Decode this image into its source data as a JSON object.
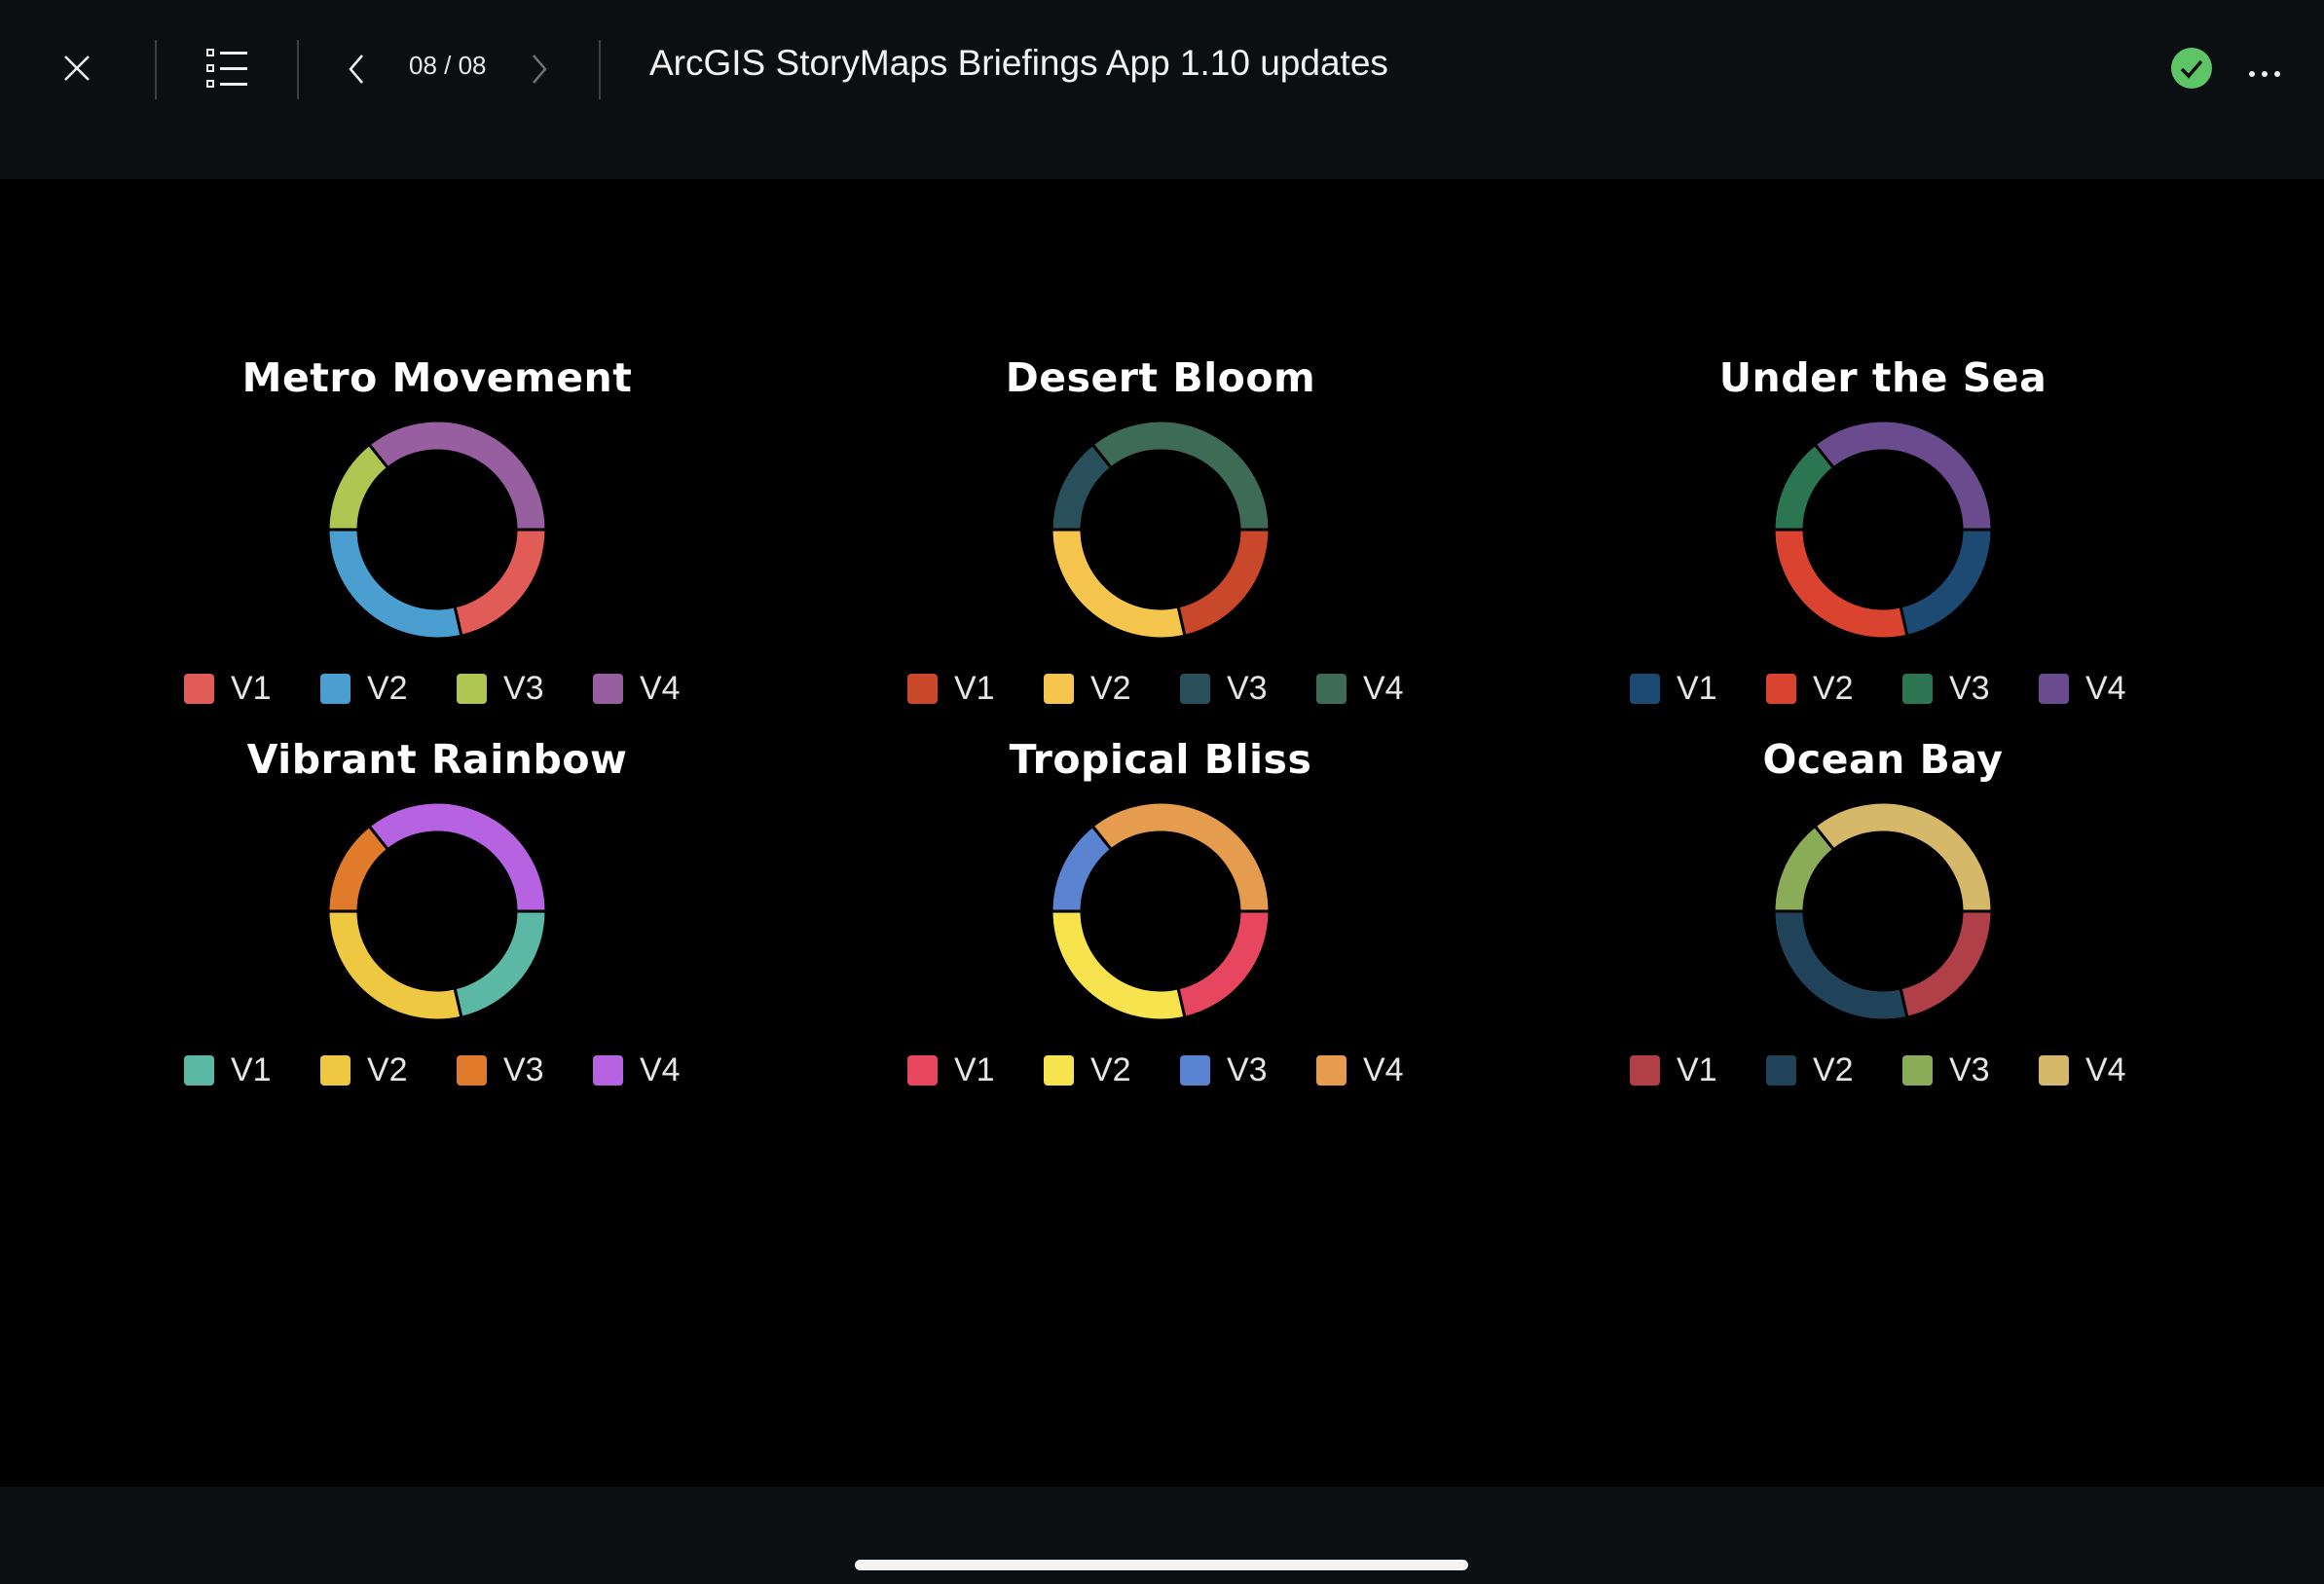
{
  "header": {
    "close_icon": "close-icon",
    "toc_icon": "list-icon",
    "pager": "08 / 08",
    "title": "ArcGIS StoryMaps Briefings App 1.10 updates",
    "status_icon": "check-circle-icon",
    "status_color": "#5ec566",
    "more_icon": "more-horizontal-icon"
  },
  "chart_data": [
    {
      "type": "pie",
      "donut": true,
      "title": "Metro Movement",
      "categories": [
        "V1",
        "V2",
        "V3",
        "V4"
      ],
      "values": [
        3,
        4,
        2,
        5
      ],
      "colors": [
        "#e15c57",
        "#4a9fd0",
        "#b0c653",
        "#975ea0"
      ],
      "legend": "bottom"
    },
    {
      "type": "pie",
      "donut": true,
      "title": "Desert Bloom",
      "categories": [
        "V1",
        "V2",
        "V3",
        "V4"
      ],
      "values": [
        3,
        4,
        2,
        5
      ],
      "colors": [
        "#c9472b",
        "#f5c54e",
        "#284f5a",
        "#3d6b55"
      ],
      "legend": "bottom"
    },
    {
      "type": "pie",
      "donut": true,
      "title": "Under the Sea",
      "categories": [
        "V1",
        "V2",
        "V3",
        "V4"
      ],
      "values": [
        3,
        4,
        2,
        5
      ],
      "colors": [
        "#1d4a73",
        "#d9432f",
        "#2b7551",
        "#6a4c8e"
      ],
      "legend": "bottom"
    },
    {
      "type": "pie",
      "donut": true,
      "title": "Vibrant Rainbow",
      "categories": [
        "V1",
        "V2",
        "V3",
        "V4"
      ],
      "values": [
        3,
        4,
        2,
        5
      ],
      "colors": [
        "#5bb8a5",
        "#eec841",
        "#e07b2c",
        "#b563e0"
      ],
      "legend": "bottom"
    },
    {
      "type": "pie",
      "donut": true,
      "title": "Tropical Bliss",
      "categories": [
        "V1",
        "V2",
        "V3",
        "V4"
      ],
      "values": [
        3,
        4,
        2,
        5
      ],
      "colors": [
        "#e6465e",
        "#f6e34e",
        "#5a84cf",
        "#e59c4e"
      ],
      "legend": "bottom"
    },
    {
      "type": "pie",
      "donut": true,
      "title": "Ocean Bay",
      "categories": [
        "V1",
        "V2",
        "V3",
        "V4"
      ],
      "values": [
        3,
        4,
        2,
        5
      ],
      "colors": [
        "#b03f48",
        "#20435a",
        "#8aab58",
        "#d6b86a"
      ],
      "legend": "bottom"
    }
  ]
}
